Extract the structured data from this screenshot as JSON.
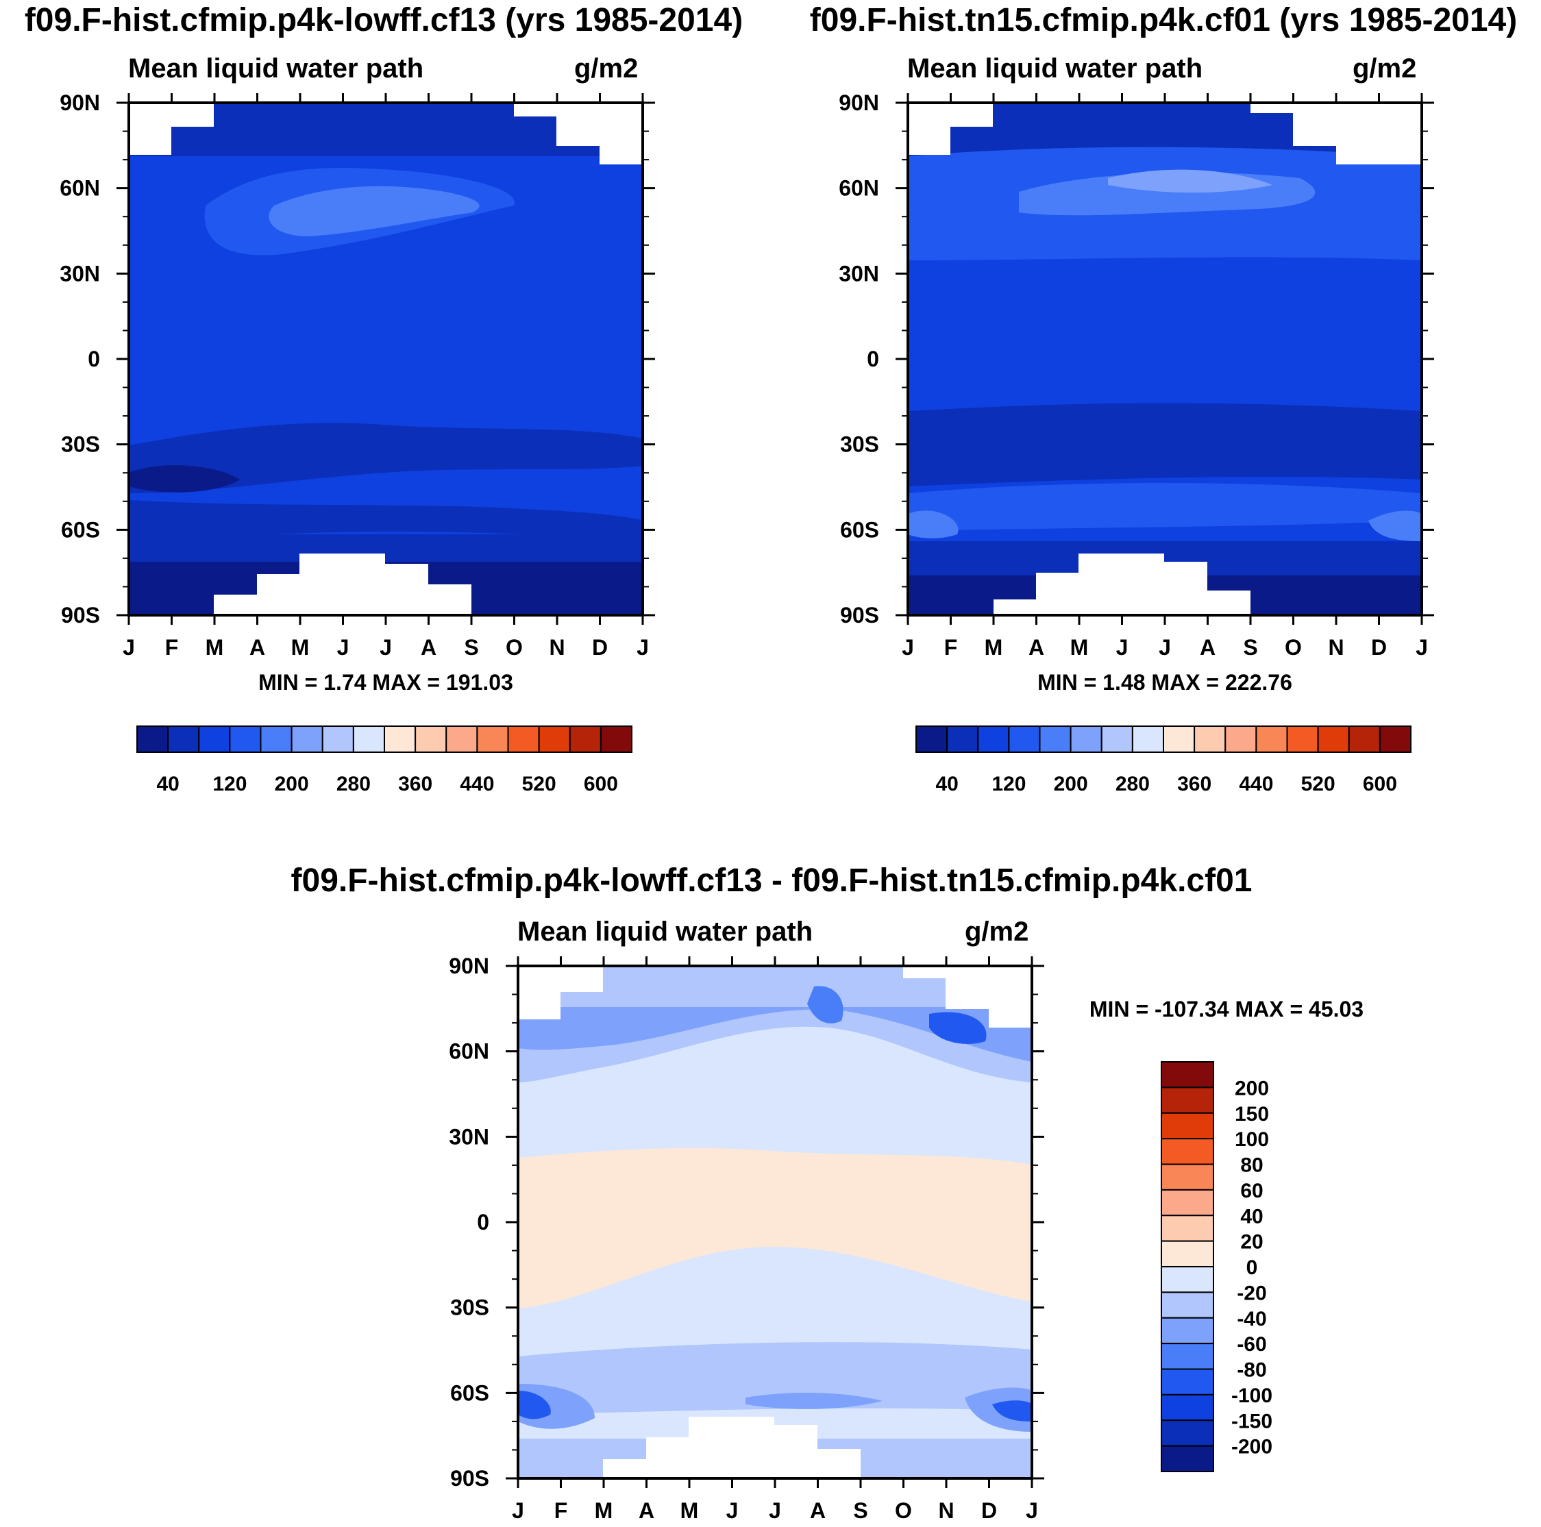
{
  "chart_data": [
    {
      "type": "heatmap",
      "panel": "top-left",
      "title": "f09.F-hist.cfmip.p4k-lowff.cf13 (yrs 1985-2014)",
      "subtitle_left": "Mean liquid water path",
      "subtitle_right": "g/m2",
      "x_tick_labels": [
        "J",
        "F",
        "M",
        "A",
        "M",
        "J",
        "J",
        "A",
        "S",
        "O",
        "N",
        "D",
        "J"
      ],
      "y_tick_labels": [
        "90N",
        "60N",
        "30N",
        "0",
        "30S",
        "60S",
        "90S"
      ],
      "y_tick_values": [
        90,
        60,
        30,
        0,
        -30,
        -60,
        -90
      ],
      "ylim": [
        -90,
        90
      ],
      "min_max_text": "MIN =   1.74 MAX = 191.03",
      "min": 1.74,
      "max": 191.03,
      "colorbar": {
        "orientation": "horizontal",
        "labels": [
          "40",
          "120",
          "200",
          "280",
          "360",
          "440",
          "520",
          "600"
        ],
        "levels": [
          20,
          40,
          80,
          120,
          160,
          200,
          240,
          280,
          320,
          360,
          400,
          440,
          480,
          520,
          560,
          600
        ],
        "colors": [
          "#0a1a88",
          "#0b2fb8",
          "#0f40e0",
          "#2158f0",
          "#4a7ef8",
          "#7ea2fb",
          "#b0c6fc",
          "#d9e6fd",
          "#fde8d8",
          "#fccbb0",
          "#fba98a",
          "#f98656",
          "#f45a24",
          "#e03c0a",
          "#b52408",
          "#820a0a"
        ]
      }
    },
    {
      "type": "heatmap",
      "panel": "top-right",
      "title": "f09.F-hist.tn15.cfmip.p4k.cf01 (yrs 1985-2014)",
      "subtitle_left": "Mean liquid water path",
      "subtitle_right": "g/m2",
      "x_tick_labels": [
        "J",
        "F",
        "M",
        "A",
        "M",
        "J",
        "J",
        "A",
        "S",
        "O",
        "N",
        "D",
        "J"
      ],
      "y_tick_labels": [
        "90N",
        "60N",
        "30N",
        "0",
        "30S",
        "60S",
        "90S"
      ],
      "y_tick_values": [
        90,
        60,
        30,
        0,
        -30,
        -60,
        -90
      ],
      "ylim": [
        -90,
        90
      ],
      "min_max_text": "MIN =   1.48 MAX = 222.76",
      "min": 1.48,
      "max": 222.76,
      "colorbar": {
        "orientation": "horizontal",
        "labels": [
          "40",
          "120",
          "200",
          "280",
          "360",
          "440",
          "520",
          "600"
        ],
        "levels": [
          20,
          40,
          80,
          120,
          160,
          200,
          240,
          280,
          320,
          360,
          400,
          440,
          480,
          520,
          560,
          600
        ],
        "colors": [
          "#0a1a88",
          "#0b2fb8",
          "#0f40e0",
          "#2158f0",
          "#4a7ef8",
          "#7ea2fb",
          "#b0c6fc",
          "#d9e6fd",
          "#fde8d8",
          "#fccbb0",
          "#fba98a",
          "#f98656",
          "#f45a24",
          "#e03c0a",
          "#b52408",
          "#820a0a"
        ]
      }
    },
    {
      "type": "heatmap",
      "panel": "bottom",
      "title": "f09.F-hist.cfmip.p4k-lowff.cf13 - f09.F-hist.tn15.cfmip.p4k.cf01",
      "subtitle_left": "Mean liquid water path",
      "subtitle_right": "g/m2",
      "x_tick_labels": [
        "J",
        "F",
        "M",
        "A",
        "M",
        "J",
        "J",
        "A",
        "S",
        "O",
        "N",
        "D",
        "J"
      ],
      "y_tick_labels": [
        "90N",
        "60N",
        "30N",
        "0",
        "30S",
        "60S",
        "90S"
      ],
      "y_tick_values": [
        90,
        60,
        30,
        0,
        -30,
        -60,
        -90
      ],
      "ylim": [
        -90,
        90
      ],
      "min_max_text": "MIN = -107.34 MAX =  45.03",
      "min": -107.34,
      "max": 45.03,
      "colorbar": {
        "orientation": "vertical",
        "labels": [
          "200",
          "150",
          "100",
          "80",
          "60",
          "40",
          "20",
          "0",
          "-20",
          "-40",
          "-60",
          "-80",
          "-100",
          "-150",
          "-200"
        ],
        "colors_top_to_bottom": [
          "#820a0a",
          "#b52408",
          "#e03c0a",
          "#f45a24",
          "#f98656",
          "#fba98a",
          "#fccbb0",
          "#fde8d8",
          "#d9e6fd",
          "#b0c6fc",
          "#7ea2fb",
          "#4a7ef8",
          "#2158f0",
          "#0f40e0",
          "#0b2fb8",
          "#0a1a88"
        ]
      }
    }
  ]
}
